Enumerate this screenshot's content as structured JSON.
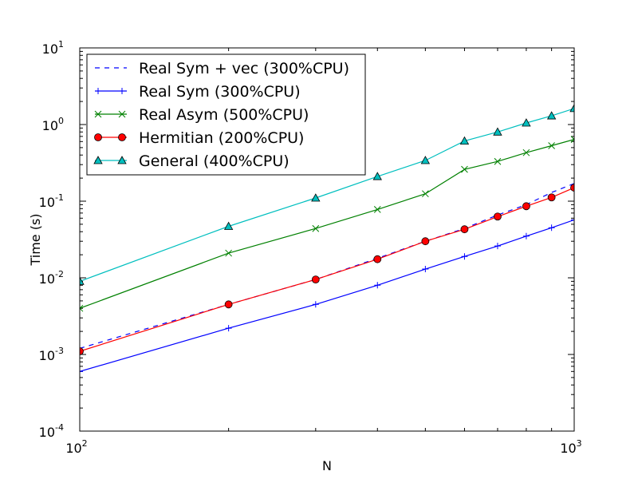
{
  "chart_data": {
    "type": "line",
    "xscale": "log",
    "yscale": "log",
    "xlabel": "N",
    "ylabel": "Time (s)",
    "xlim": [
      100,
      1000
    ],
    "ylim": [
      0.0001,
      10
    ],
    "x_ticks": [
      {
        "base": "10",
        "exp": "2",
        "value": 100
      },
      {
        "base": "10",
        "exp": "3",
        "value": 1000
      }
    ],
    "y_ticks": [
      {
        "base": "10",
        "exp": "-4",
        "value": 0.0001
      },
      {
        "base": "10",
        "exp": "-3",
        "value": 0.001
      },
      {
        "base": "10",
        "exp": "-2",
        "value": 0.01
      },
      {
        "base": "10",
        "exp": "-1",
        "value": 0.1
      },
      {
        "base": "10",
        "exp": "0",
        "value": 1
      },
      {
        "base": "10",
        "exp": "1",
        "value": 10
      }
    ],
    "legend_position": "top-left",
    "series": [
      {
        "name": "Real Sym + vec (300%CPU)",
        "color": "#0000ff",
        "linestyle": "dashed",
        "marker": "none",
        "x": [
          100,
          200,
          300,
          400,
          500,
          600,
          700,
          800,
          900,
          1000
        ],
        "y": [
          0.0012,
          0.0045,
          0.0095,
          0.018,
          0.03,
          0.044,
          0.066,
          0.09,
          0.13,
          0.17
        ]
      },
      {
        "name": "Real Sym (300%CPU)",
        "color": "#0000ff",
        "linestyle": "solid",
        "marker": "plus",
        "x": [
          100,
          200,
          300,
          400,
          500,
          600,
          700,
          800,
          900,
          1000
        ],
        "y": [
          0.0006,
          0.0022,
          0.0045,
          0.008,
          0.013,
          0.019,
          0.026,
          0.035,
          0.045,
          0.057
        ]
      },
      {
        "name": "Real Asym (500%CPU)",
        "color": "#008000",
        "linestyle": "solid",
        "marker": "x",
        "x": [
          100,
          200,
          300,
          400,
          500,
          600,
          700,
          800,
          900,
          1000
        ],
        "y": [
          0.004,
          0.021,
          0.044,
          0.078,
          0.125,
          0.26,
          0.33,
          0.43,
          0.53,
          0.64
        ]
      },
      {
        "name": "Hermitian (200%CPU)",
        "color": "#ff0000",
        "linestyle": "solid",
        "marker": "circle",
        "x": [
          100,
          200,
          300,
          400,
          500,
          600,
          700,
          800,
          900,
          1000
        ],
        "y": [
          0.0011,
          0.0045,
          0.0095,
          0.0175,
          0.03,
          0.043,
          0.063,
          0.086,
          0.112,
          0.15
        ]
      },
      {
        "name": "General (400%CPU)",
        "color": "#00bfbf",
        "linestyle": "solid",
        "marker": "triangle",
        "x": [
          100,
          200,
          300,
          400,
          500,
          600,
          700,
          800,
          900,
          1000
        ],
        "y": [
          0.009,
          0.047,
          0.11,
          0.21,
          0.34,
          0.61,
          0.8,
          1.05,
          1.3,
          1.62
        ]
      }
    ]
  }
}
